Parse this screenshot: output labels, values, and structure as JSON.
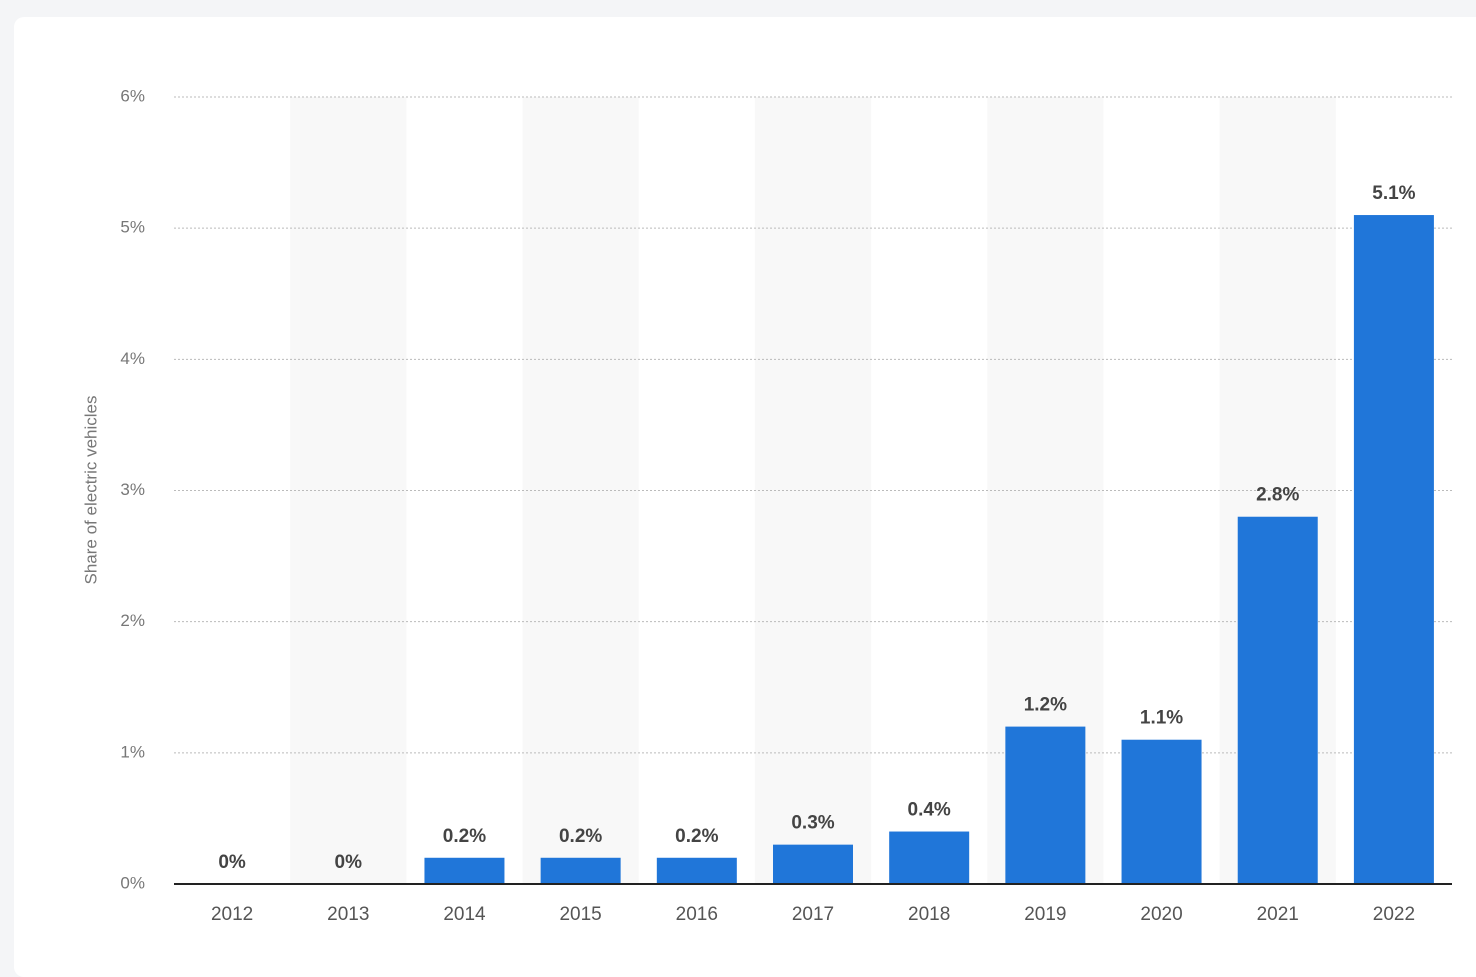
{
  "chart_data": {
    "type": "bar",
    "y_label": "Share of electric vehicles",
    "categories": [
      "2012",
      "2013",
      "2014",
      "2015",
      "2016",
      "2017",
      "2018",
      "2019",
      "2020",
      "2021",
      "2022"
    ],
    "values": [
      0,
      0,
      0.2,
      0.2,
      0.2,
      0.3,
      0.4,
      1.2,
      1.1,
      2.8,
      5.1
    ],
    "value_labels": [
      "0%",
      "0%",
      "0.2%",
      "0.2%",
      "0.2%",
      "0.3%",
      "0.4%",
      "1.2%",
      "1.1%",
      "2.8%",
      "5.1%"
    ],
    "color": "#2076d9",
    "ylim": [
      0,
      6
    ],
    "yticks": [
      {
        "value": 0,
        "label": "0%"
      },
      {
        "value": 1,
        "label": "1%"
      },
      {
        "value": 2,
        "label": "2%"
      },
      {
        "value": 3,
        "label": "3%"
      },
      {
        "value": 4,
        "label": "4%"
      },
      {
        "value": 5,
        "label": "5%"
      },
      {
        "value": 6,
        "label": "6%"
      }
    ],
    "grid": true
  }
}
